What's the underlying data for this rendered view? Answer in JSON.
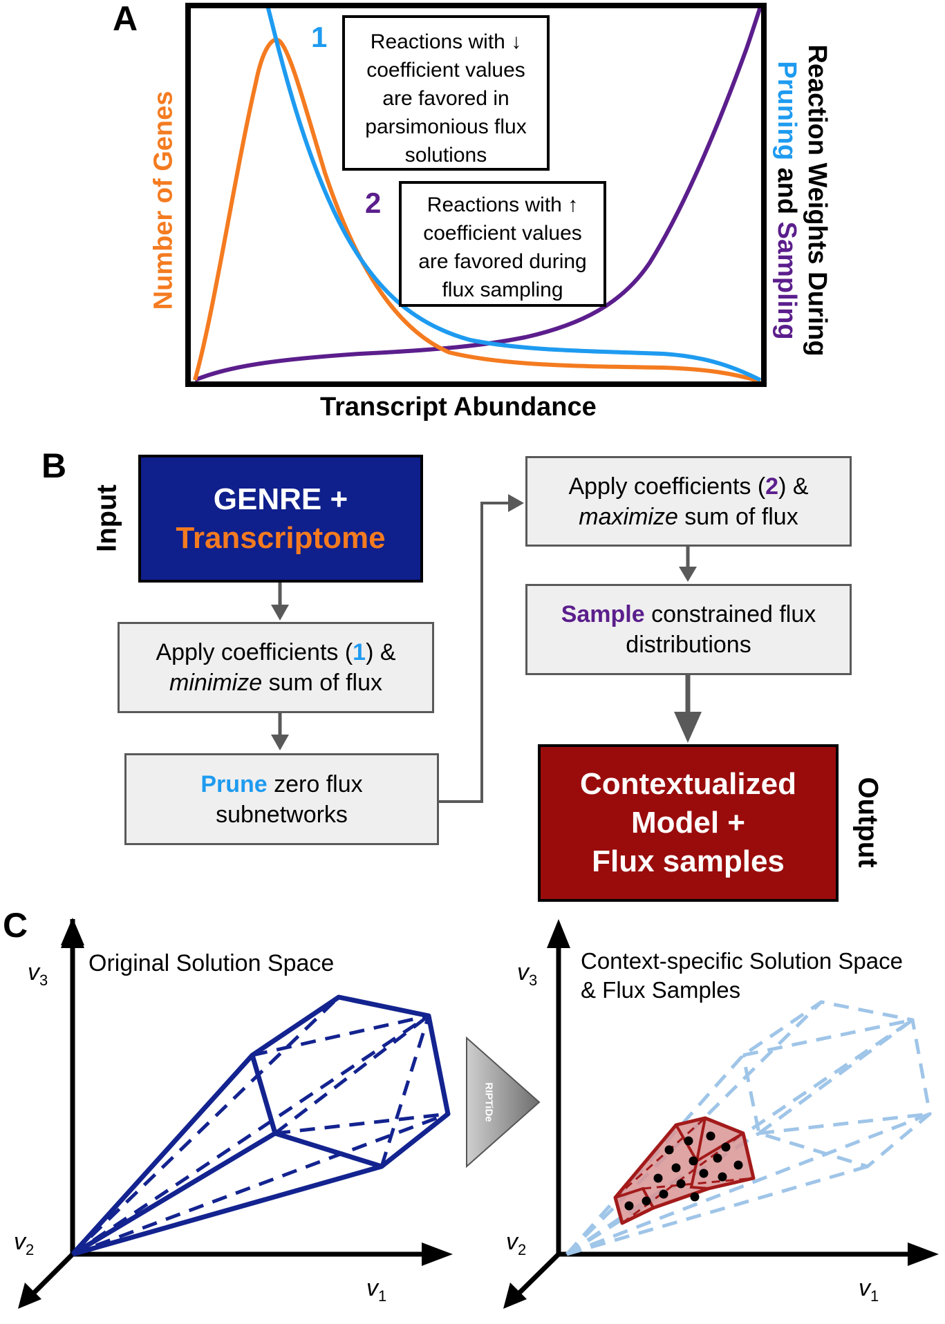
{
  "panel_a": {
    "letter": "A",
    "x_axis_label": "Transcript Abundance",
    "left_axis_label": "Number of Genes",
    "right_axis_label": {
      "line1": "Reaction Weights During",
      "pruning": "Pruning",
      "and": " and ",
      "sampling": "Sampling"
    },
    "marker1": "1",
    "marker2": "2",
    "note1": [
      "Reactions with ↓",
      "coefficient values",
      "are favored in",
      "parsimonious flux",
      "solutions"
    ],
    "note2": [
      "Reactions with ↑",
      "coefficient values",
      "are favored during",
      "flux sampling"
    ],
    "colors": {
      "genes": "#f47b20",
      "pruning": "#1e9bf0",
      "sampling": "#5b1e8c"
    }
  },
  "panel_b": {
    "letter": "B",
    "input_label": "Input",
    "output_label": "Output",
    "input_box": {
      "line1": "GENRE +",
      "line2": "Transcriptome"
    },
    "step1": {
      "pre": "Apply coefficients (",
      "num": "1",
      "post": ") &",
      "ital": "minimize",
      "rest": " sum of flux"
    },
    "step2": {
      "hl": "Prune",
      "rest1": " zero flux",
      "line2": "subnetworks"
    },
    "step3": {
      "pre": "Apply coefficients (",
      "num": "2",
      "post": ") &",
      "ital": "maximize",
      "rest": " sum of flux"
    },
    "step4": {
      "hl": "Sample",
      "rest1": " constrained flux",
      "line2": "distributions"
    },
    "output_box": [
      "Contextualized",
      "Model +",
      "Flux samples"
    ],
    "colors": {
      "input_bg": "#0f1f8c",
      "output_bg": "#9a0c0c",
      "box_bg": "#efefef"
    }
  },
  "panel_c": {
    "letter": "C",
    "left_title": "Original Solution Space",
    "right_title": [
      "Context-specific Solution Space",
      "& Flux Samples"
    ],
    "arrow_label": "RIPTiDe",
    "axis": {
      "v": "v",
      "s1": "1",
      "s2": "2",
      "s3": "3"
    },
    "colors": {
      "polytope": "#13238f",
      "faded": "#9fc5e8",
      "subspace": "#a31a1a"
    }
  }
}
